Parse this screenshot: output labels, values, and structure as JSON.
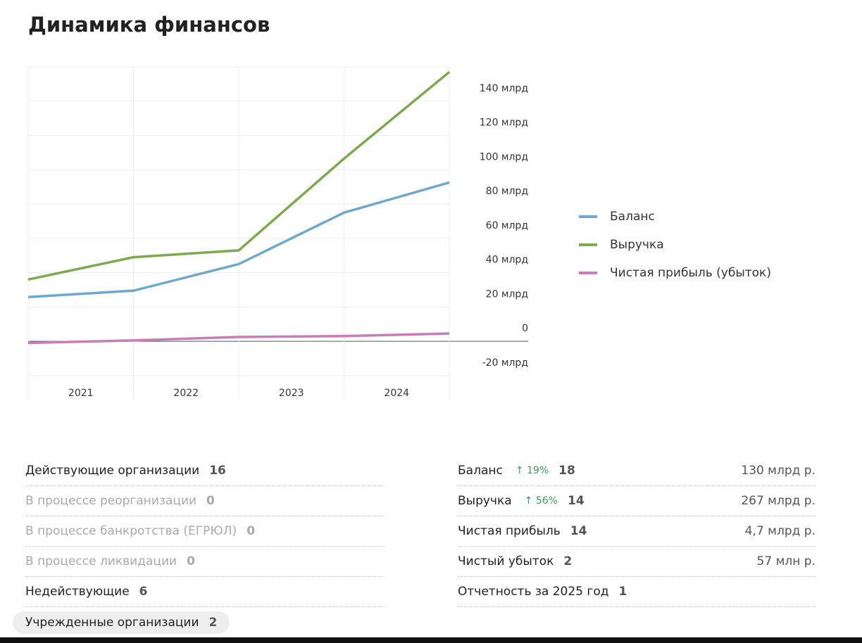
{
  "title": "Динамика финансов",
  "chart_data": {
    "type": "line",
    "categories": [
      "2021",
      "2022",
      "2023",
      "2024",
      null
    ],
    "ylim": [
      -34,
      160
    ],
    "yticks": [
      {
        "value": -20,
        "label": "-20 млрд"
      },
      0,
      {
        "value": 20,
        "label": "20 млрд"
      },
      {
        "value": 40,
        "label": "40 млрд"
      },
      {
        "value": 60,
        "label": "60 млрд"
      },
      {
        "value": 80,
        "label": "80 млрд"
      },
      {
        "value": 100,
        "label": "100 млрд"
      },
      {
        "value": 120,
        "label": "120 млрд"
      },
      {
        "value": 140,
        "label": "140 млрд"
      }
    ],
    "grid": true,
    "legend": "right",
    "series": [
      {
        "name": "Баланс",
        "color": "#6fa8cf",
        "values": [
          25.8,
          29.5,
          45,
          75,
          92.6
        ]
      },
      {
        "name": "Выручка",
        "color": "#7daa4e",
        "values": [
          36,
          49,
          53,
          106.5,
          157
        ]
      },
      {
        "name": "Чистая прибыль (убыток)",
        "color": "#c97db8",
        "values": [
          -1,
          0.5,
          2.5,
          3,
          4.5
        ]
      }
    ]
  },
  "organizations": [
    {
      "label": "Действующие организации",
      "count": "16",
      "muted": false
    },
    {
      "label": "В процессе реорганизации",
      "count": "0",
      "muted": true
    },
    {
      "label": "В процессе банкротства (ЕГРЮЛ)",
      "count": "0",
      "muted": true
    },
    {
      "label": "В процессе ликвидации",
      "count": "0",
      "muted": true
    },
    {
      "label": "Недействующие",
      "count": "6",
      "muted": false
    },
    {
      "label": "Учрежденные организации",
      "count": "2",
      "muted": false,
      "pill": true
    }
  ],
  "finances": [
    {
      "label": "Баланс",
      "change": "19%",
      "count": "18",
      "amount": "130 млрд р."
    },
    {
      "label": "Выручка",
      "change": "56%",
      "count": "14",
      "amount": "267 млрд р."
    },
    {
      "label": "Чистая прибыль",
      "count": "14",
      "amount": "4,7 млрд р."
    },
    {
      "label": "Чистый убыток",
      "count": "2",
      "amount": "57 млн р."
    },
    {
      "label": "Отчетность за 2025 год",
      "count": "1"
    }
  ]
}
